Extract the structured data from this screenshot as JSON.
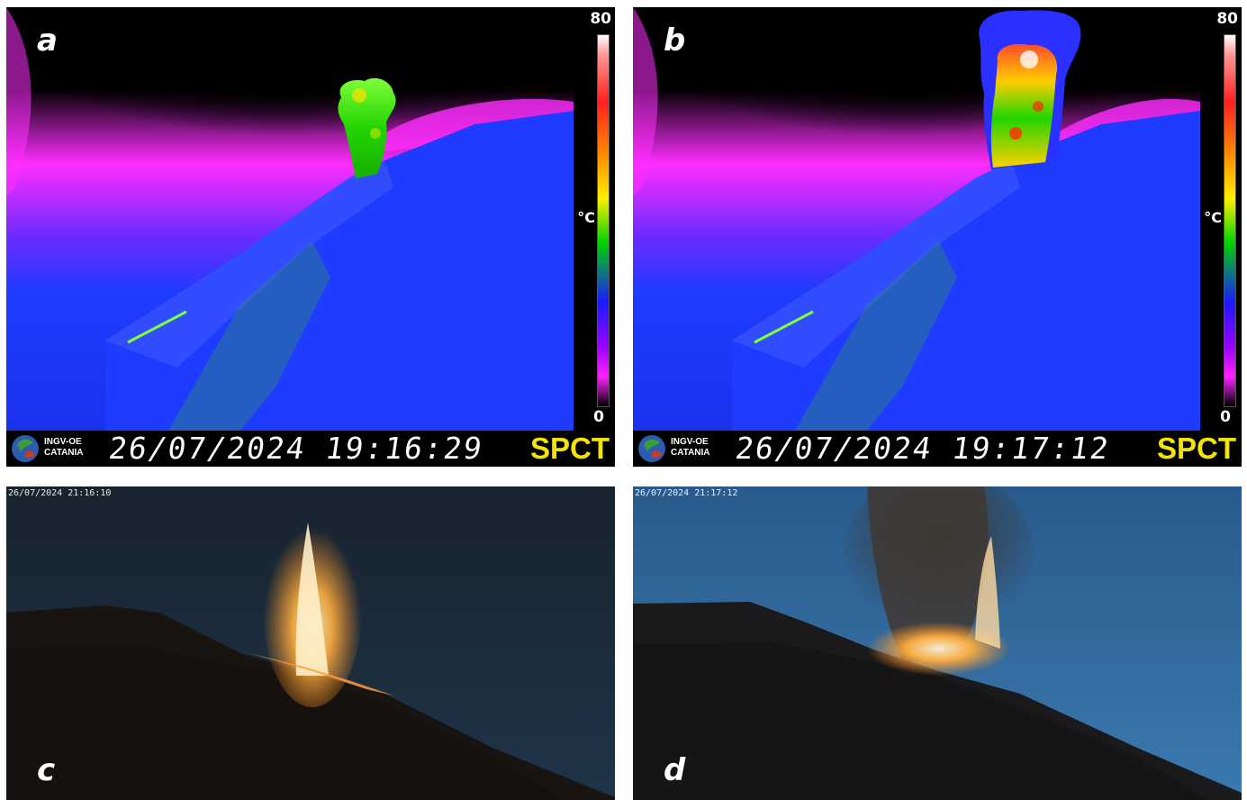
{
  "figure": {
    "panels": [
      {
        "letter": "a",
        "type": "thermal",
        "scale_max": "80",
        "scale_min": "0",
        "scale_unit": "°C",
        "org_line1": "INGV-OE",
        "org_line2": "CATANIA",
        "timestamp": "26/07/2024 19:16:29",
        "station": "SPCT"
      },
      {
        "letter": "b",
        "type": "thermal",
        "scale_max": "80",
        "scale_min": "0",
        "scale_unit": "°C",
        "org_line1": "INGV-OE",
        "org_line2": "CATANIA",
        "timestamp": "26/07/2024 19:17:12",
        "station": "SPCT"
      },
      {
        "letter": "c",
        "type": "visible",
        "timestamp": "26/07/2024 21:16:10"
      },
      {
        "letter": "d",
        "type": "visible",
        "timestamp": "26/07/2024 21:17:12"
      }
    ]
  },
  "colors": {
    "thermal_sky": "#000000",
    "thermal_haze": "#ff2dff",
    "thermal_ground": "#1f3bff",
    "thermal_plume_cool": "#22d400",
    "thermal_plume_hot": "#ff2a00",
    "station_text": "#f5e400",
    "night_sky_c": "#1a2a3a",
    "night_sky_d": "#2a5a8a",
    "lava": "#ffb040"
  }
}
